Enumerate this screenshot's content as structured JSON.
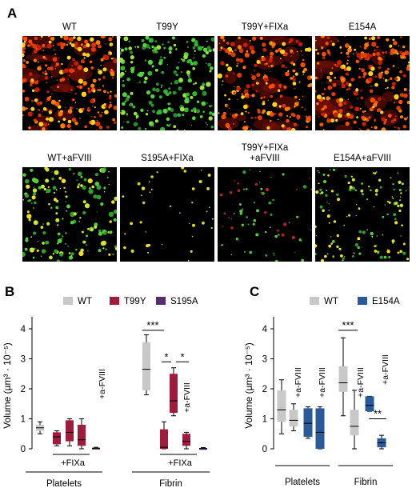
{
  "panels": {
    "a": {
      "letter": "A",
      "images": [
        {
          "label": "WT",
          "palette": "red-yellow",
          "density": 0.95
        },
        {
          "label": "T99Y",
          "palette": "green",
          "density": 0.75
        },
        {
          "label": "T99Y+FIXa",
          "palette": "red-yellow",
          "density": 0.75
        },
        {
          "label": "E154A",
          "palette": "red-yellow",
          "density": 0.9
        },
        {
          "label": "WT+aFVIII",
          "palette": "green-yellow",
          "density": 0.55
        },
        {
          "label": "S195A+FIXa",
          "palette": "yellow-sparse",
          "density": 0.04
        },
        {
          "label": "T99Y+FIXa\n+aFVIII",
          "palette": "green-sparse",
          "density": 0.15
        },
        {
          "label": "E154A+aFVIII",
          "palette": "green-yellow",
          "density": 0.4
        }
      ]
    },
    "b": {
      "letter": "B"
    },
    "c": {
      "letter": "C"
    }
  },
  "chart_data": [
    {
      "type": "box",
      "panel": "B",
      "ylabel": "Volume (µm³ · 10⁻⁵)",
      "ylim": [
        0,
        4.4
      ],
      "yticks": [
        0,
        1,
        2,
        3,
        4
      ],
      "legend": [
        {
          "name": "WT",
          "color": "#c8c8c8"
        },
        {
          "name": "T99Y",
          "color": "#a01c3c"
        },
        {
          "name": "S195A",
          "color": "#5a2a6e"
        }
      ],
      "groups": [
        "Platelets",
        "Fibrin"
      ],
      "subgroup_label": "+FIXa",
      "boxes": [
        {
          "group": "Platelets",
          "series": "WT",
          "min": 0.5,
          "q1": 0.6,
          "median": 0.7,
          "q3": 0.8,
          "max": 0.9
        },
        {
          "group": "Platelets",
          "series": "T99Y",
          "min": 0.1,
          "q1": 0.15,
          "median": 0.4,
          "q3": 0.55,
          "max": 0.6
        },
        {
          "group": "Platelets",
          "series": "T99Y",
          "min": 0.1,
          "q1": 0.25,
          "median": 0.55,
          "q3": 0.95,
          "max": 1.0
        },
        {
          "group": "Platelets",
          "series": "T99Y",
          "min": 0.0,
          "q1": 0.1,
          "median": 0.3,
          "q3": 0.8,
          "max": 1.0
        },
        {
          "group": "Platelets",
          "series": "S195A",
          "min": 0.0,
          "q1": 0.0,
          "median": 0.02,
          "q3": 0.03,
          "max": 0.05
        },
        {
          "group": "Fibrin",
          "series": "WT",
          "min": 1.8,
          "q1": 1.95,
          "median": 2.65,
          "q3": 3.55,
          "max": 3.8
        },
        {
          "group": "Fibrin",
          "series": "T99Y",
          "min": 0.0,
          "q1": 0.0,
          "median": 0.05,
          "q3": 0.65,
          "max": 0.9
        },
        {
          "group": "Fibrin",
          "series": "T99Y",
          "min": 1.1,
          "q1": 1.2,
          "median": 1.6,
          "q3": 2.5,
          "max": 2.7
        },
        {
          "group": "Fibrin",
          "series": "T99Y",
          "min": 0.0,
          "q1": 0.1,
          "median": 0.25,
          "q3": 0.5,
          "max": 0.55
        },
        {
          "group": "Fibrin",
          "series": "S195A",
          "min": 0.0,
          "q1": 0.0,
          "median": 0.01,
          "q3": 0.02,
          "max": 0.04
        }
      ],
      "annotations": {
        "afviii_label": "+a-FVIII",
        "sig_fibrin_wt_t99y": "***",
        "sig_fibrin_t99y_fixa_a": "*",
        "sig_fibrin_t99y_fixa_b": "*"
      }
    },
    {
      "type": "box",
      "panel": "C",
      "ylabel": "Volume (µm³ · 10⁻⁵)",
      "ylim": [
        0,
        4.4
      ],
      "yticks": [
        0,
        1,
        2,
        3,
        4
      ],
      "legend": [
        {
          "name": "WT",
          "color": "#c8c8c8"
        },
        {
          "name": "E154A",
          "color": "#2a5a9a"
        }
      ],
      "groups": [
        "Platelets",
        "Fibrin"
      ],
      "boxes": [
        {
          "group": "Platelets",
          "series": "WT",
          "min": 0.5,
          "q1": 0.9,
          "median": 1.3,
          "q3": 1.95,
          "max": 2.3
        },
        {
          "group": "Platelets",
          "series": "WT",
          "min": 0.6,
          "q1": 0.75,
          "median": 0.95,
          "q3": 1.3,
          "max": 1.5
        },
        {
          "group": "Platelets",
          "series": "E154A",
          "min": 0.35,
          "q1": 0.4,
          "median": 0.85,
          "q3": 1.35,
          "max": 1.4
        },
        {
          "group": "Platelets",
          "series": "E154A",
          "min": 0.0,
          "q1": 0.0,
          "median": 0.55,
          "q3": 1.35,
          "max": 1.4
        },
        {
          "group": "Fibrin",
          "series": "WT",
          "min": 1.1,
          "q1": 1.9,
          "median": 2.2,
          "q3": 2.75,
          "max": 3.7
        },
        {
          "group": "Fibrin",
          "series": "WT",
          "min": 0.0,
          "q1": 0.45,
          "median": 0.75,
          "q3": 1.3,
          "max": 1.95
        },
        {
          "group": "Fibrin",
          "series": "E154A",
          "min": 1.25,
          "q1": 1.25,
          "median": 1.45,
          "q3": 1.75,
          "max": 1.75
        },
        {
          "group": "Fibrin",
          "series": "E154A",
          "min": 0.0,
          "q1": 0.05,
          "median": 0.2,
          "q3": 0.35,
          "max": 0.45
        }
      ],
      "annotations": {
        "afviii_label": "+a-FVIII",
        "sig_fibrin_wt": "***",
        "sig_fibrin_e154a": "**"
      }
    }
  ]
}
